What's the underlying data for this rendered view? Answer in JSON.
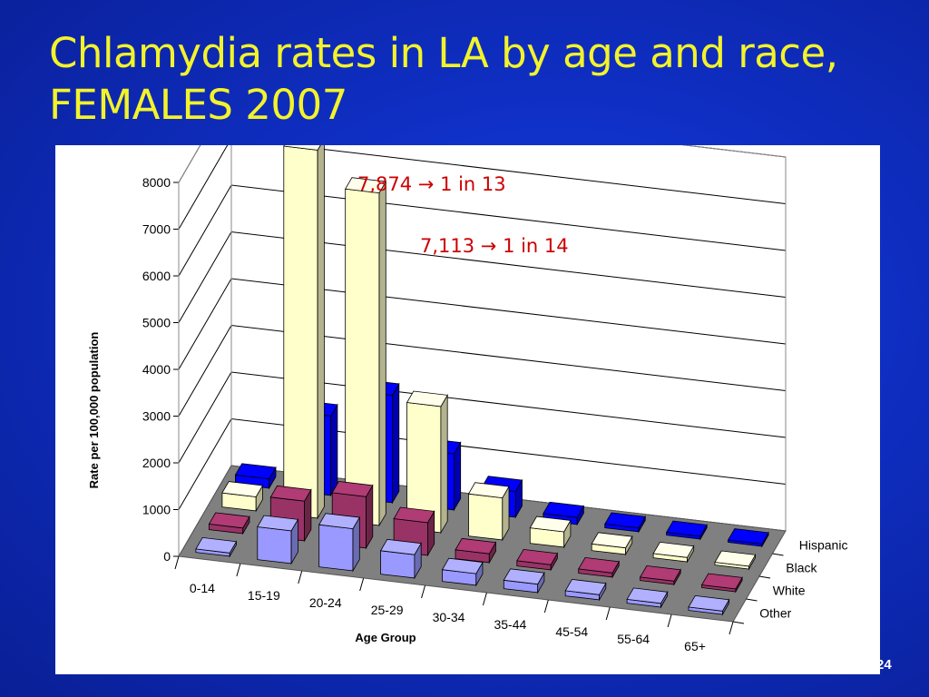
{
  "slide": {
    "title_line1": "Chlamydia rates in LA by age and race,",
    "title_line2": "FEMALES 2007",
    "page_number": "24"
  },
  "chart_data": {
    "type": "bar",
    "style": "3d-grouped",
    "categories": [
      "0-14",
      "15-19",
      "20-24",
      "25-29",
      "30-34",
      "35-44",
      "45-54",
      "55-64",
      "65+"
    ],
    "series": [
      {
        "name": "Other",
        "color": "#9999ff",
        "values": [
          70,
          700,
          900,
          500,
          250,
          180,
          110,
          80,
          70
        ]
      },
      {
        "name": "White",
        "color": "#993366",
        "values": [
          120,
          850,
          1100,
          700,
          190,
          110,
          90,
          70,
          60
        ]
      },
      {
        "name": "Black",
        "color": "#ffffcc",
        "values": [
          300,
          7874,
          7113,
          2700,
          900,
          330,
          140,
          90,
          60
        ]
      },
      {
        "name": "Hispanic",
        "color": "#0000ff",
        "values": [
          200,
          1700,
          2300,
          1200,
          550,
          150,
          80,
          60,
          50
        ]
      }
    ],
    "xlabel": "Age Group",
    "ylabel": "Rate per 100,000 population",
    "ylim": [
      0,
      8000
    ],
    "yticks": [
      "0",
      "1000",
      "2000",
      "3000",
      "4000",
      "5000",
      "6000",
      "7000",
      "8000"
    ],
    "grid": true,
    "legend": "depth-axis-right",
    "annotations": [
      {
        "text": "7,874 → 1 in 13",
        "color": "#cc0000"
      },
      {
        "text": "7,113 → 1 in 14",
        "color": "#cc0000"
      }
    ]
  }
}
